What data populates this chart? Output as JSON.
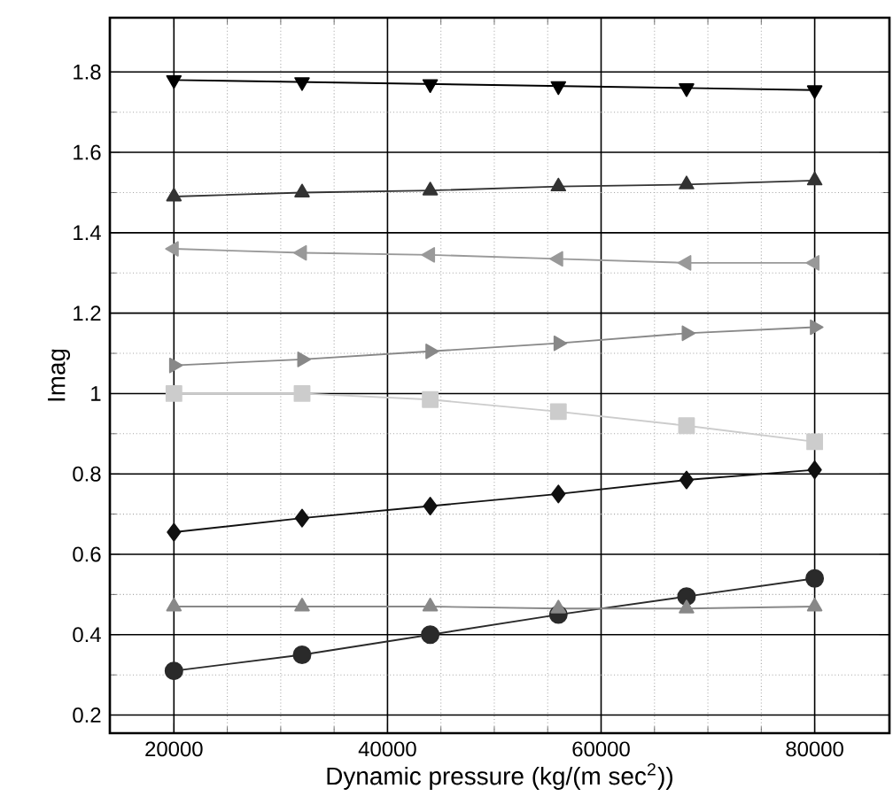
{
  "chart_data": {
    "type": "line",
    "xlabel": "Dynamic pressure (kg/(m sec$^{2}$))",
    "ylabel": "Imag",
    "x": [
      20000,
      32000,
      44000,
      56000,
      68000,
      80000
    ],
    "series": [
      {
        "color": "#000000",
        "marker": "triangle-down",
        "values": [
          1.78,
          1.775,
          1.77,
          1.765,
          1.76,
          1.755
        ]
      },
      {
        "color": "#333333",
        "marker": "triangle",
        "values": [
          1.49,
          1.5,
          1.505,
          1.515,
          1.52,
          1.53
        ]
      },
      {
        "color": "#999999",
        "marker": "triangle-left",
        "values": [
          1.36,
          1.35,
          1.345,
          1.335,
          1.325,
          1.325
        ]
      },
      {
        "color": "#888888",
        "marker": "triangle-right",
        "values": [
          1.07,
          1.085,
          1.105,
          1.125,
          1.15,
          1.165
        ]
      },
      {
        "color": "#cccccc",
        "marker": "square",
        "values": [
          1.0,
          1.0,
          0.985,
          0.955,
          0.92,
          0.88
        ]
      },
      {
        "color": "#111111",
        "marker": "diamond",
        "values": [
          0.655,
          0.69,
          0.72,
          0.75,
          0.785,
          0.81
        ]
      },
      {
        "color": "#2a2a2a",
        "marker": "circle",
        "values": [
          0.31,
          0.35,
          0.4,
          0.45,
          0.495,
          0.54
        ]
      },
      {
        "color": "#888888",
        "marker": "triangle",
        "values": [
          0.47,
          0.47,
          0.47,
          0.465,
          0.465,
          0.47
        ]
      }
    ],
    "xlim": [
      14000,
      87000
    ],
    "ylim": [
      0.155,
      1.935
    ],
    "xticks": [
      20000,
      40000,
      60000,
      80000
    ],
    "yticks": [
      0.2,
      0.4,
      0.6,
      0.8,
      {
        "value": 1.0,
        "label": "1"
      },
      1.2,
      1.4,
      1.6,
      1.8
    ],
    "grid": true,
    "line_style": "solid"
  }
}
